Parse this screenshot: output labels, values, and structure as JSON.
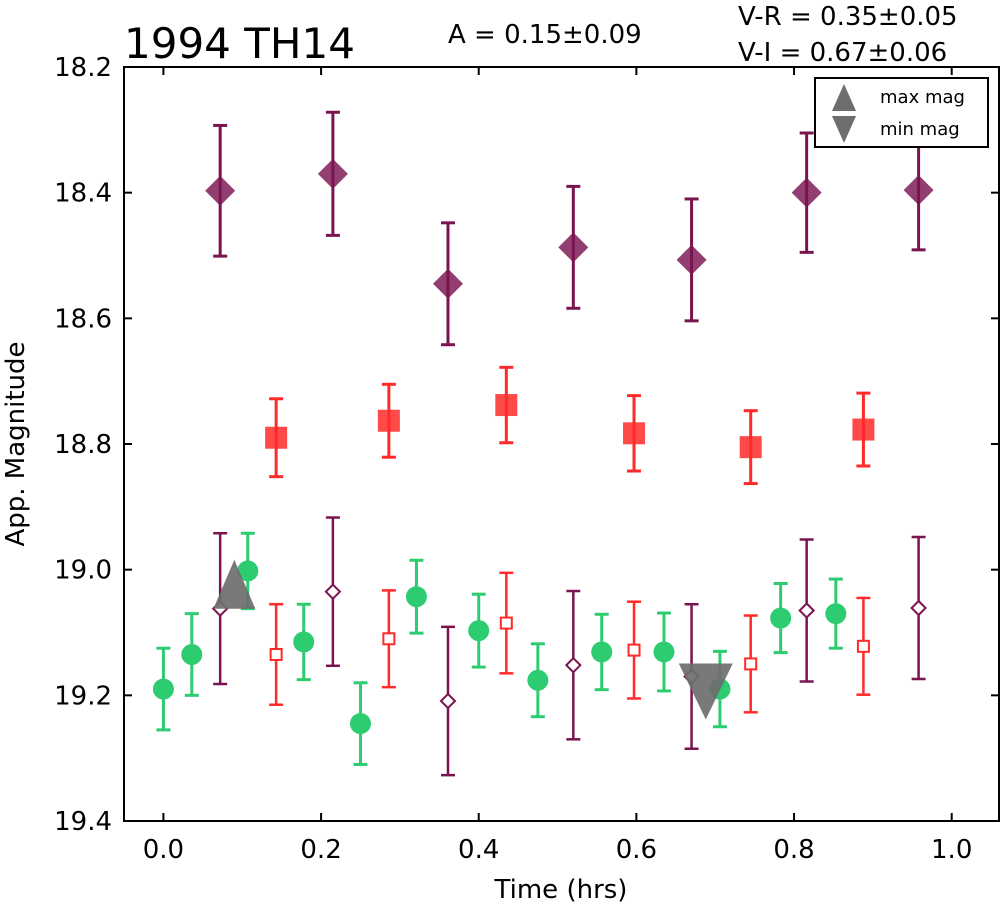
{
  "chart_data": {
    "type": "scatter",
    "title": "1994 TH14",
    "annotations": {
      "amplitude": "A  = 0.15±0.09",
      "v_r": "V-R = 0.35±0.05",
      "v_i": "V-I  = 0.67±0.06"
    },
    "xlabel": "Time (hrs)",
    "ylabel": "App. Magnitude",
    "xlim": [
      -0.05,
      1.06
    ],
    "ylim": [
      19.4,
      18.2
    ],
    "y_inverted": true,
    "xticks": [
      "0.0",
      "0.2",
      "0.4",
      "0.6",
      "0.8",
      "1.0"
    ],
    "yticks": [
      "18.2",
      "18.4",
      "18.6",
      "18.8",
      "19.0",
      "19.2",
      "19.4"
    ],
    "grid": false,
    "legend": {
      "position": "top-right",
      "entries": [
        {
          "label": "max mag",
          "marker": "triangle-up"
        },
        {
          "label": "min mag",
          "marker": "triangle-down"
        }
      ]
    },
    "colors": {
      "green": "#2ecc71",
      "red": "#ff2a2a",
      "purple": "#7a1450",
      "gray": "#6e6e6e"
    },
    "series": [
      {
        "marker": "circle",
        "color": "#2ecc71",
        "filled": true,
        "x": [
          0.0,
          0.036,
          0.107,
          0.178,
          0.25,
          0.321,
          0.4,
          0.475,
          0.556,
          0.635,
          0.706,
          0.783,
          0.853
        ],
        "y": [
          19.19,
          19.135,
          19.002,
          19.115,
          19.245,
          19.043,
          19.097,
          19.176,
          19.131,
          19.131,
          19.19,
          19.077,
          19.07
        ],
        "err": [
          0.065,
          0.065,
          0.06,
          0.06,
          0.065,
          0.058,
          0.058,
          0.058,
          0.06,
          0.062,
          0.06,
          0.055,
          0.055
        ]
      },
      {
        "marker": "square",
        "color": "#ff2a2a",
        "filled": true,
        "x": [
          0.143,
          0.286,
          0.435,
          0.597,
          0.745,
          0.888
        ],
        "y": [
          18.79,
          18.763,
          18.738,
          18.783,
          18.805,
          18.777
        ],
        "err": [
          0.062,
          0.058,
          0.06,
          0.06,
          0.058,
          0.058
        ]
      },
      {
        "marker": "square",
        "color": "#ff2a2a",
        "filled": false,
        "x": [
          0.143,
          0.286,
          0.435,
          0.597,
          0.745,
          0.888
        ],
        "y": [
          19.135,
          19.11,
          19.085,
          19.128,
          19.15,
          19.122
        ],
        "err": [
          0.08,
          0.077,
          0.08,
          0.077,
          0.077,
          0.077
        ]
      },
      {
        "marker": "diamond",
        "color": "#7a1450",
        "filled": true,
        "x": [
          0.072,
          0.215,
          0.361,
          0.52,
          0.67,
          0.816,
          0.958
        ],
        "y": [
          18.397,
          18.37,
          18.545,
          18.487,
          18.507,
          18.4,
          18.396
        ],
        "err": [
          0.104,
          0.098,
          0.097,
          0.097,
          0.097,
          0.095,
          0.095
        ]
      },
      {
        "marker": "diamond",
        "color": "#7a1450",
        "filled": false,
        "x": [
          0.072,
          0.215,
          0.361,
          0.52,
          0.67,
          0.816,
          0.958
        ],
        "y": [
          19.062,
          19.035,
          19.209,
          19.152,
          19.17,
          19.065,
          19.061
        ],
        "err": [
          0.12,
          0.118,
          0.118,
          0.118,
          0.115,
          0.113,
          0.113
        ]
      }
    ],
    "extremes": {
      "max_mag": {
        "x": 0.09,
        "y": 19.04
      },
      "min_mag": {
        "x": 0.688,
        "y": 19.17
      }
    }
  }
}
